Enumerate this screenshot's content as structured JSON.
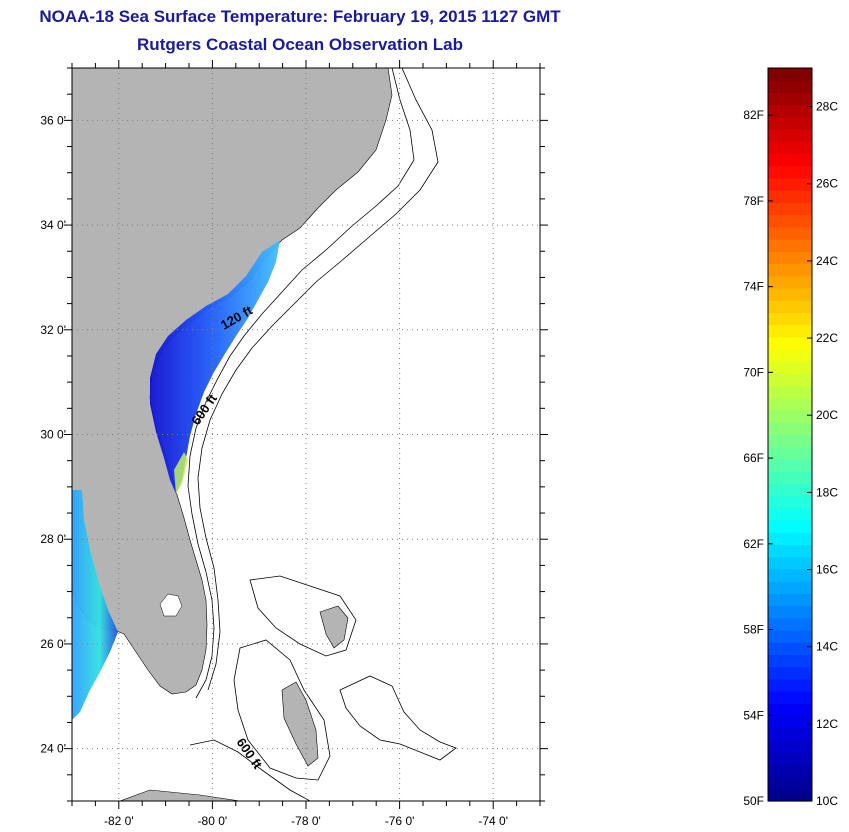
{
  "header": {
    "title": "NOAA-18 Sea Surface Temperature:  February 19, 2015 1127 GMT",
    "subtitle": "Rutgers Coastal Ocean Observation Lab"
  },
  "map": {
    "lat_range": [
      23,
      37
    ],
    "lon_range": [
      -83,
      -73
    ],
    "lat_ticks": [
      {
        "value": 24,
        "label": "24 0'"
      },
      {
        "value": 26,
        "label": "26 0'"
      },
      {
        "value": 28,
        "label": "28 0'"
      },
      {
        "value": 30,
        "label": "30 0'"
      },
      {
        "value": 32,
        "label": "32 0'"
      },
      {
        "value": 34,
        "label": "34 0'"
      },
      {
        "value": 36,
        "label": "36 0'"
      }
    ],
    "lon_ticks": [
      {
        "value": -82,
        "label": "-82 0'"
      },
      {
        "value": -80,
        "label": "-80 0'"
      },
      {
        "value": -78,
        "label": "-78 0'"
      },
      {
        "value": -76,
        "label": "-76 0'"
      },
      {
        "value": -74,
        "label": "-74 0'"
      }
    ],
    "contour_labels": [
      "120 ft",
      "600 ft",
      "600 ft"
    ],
    "colors": {
      "land": "#b4b4b4",
      "ocean": "#ffffff",
      "grid": "#7f7f7f"
    }
  },
  "colorbar": {
    "min_c": 10,
    "max_c": 29,
    "colors_low_to_high": [
      "#00008f",
      "#0000ff",
      "#0080ff",
      "#00ffff",
      "#80ff80",
      "#ffff00",
      "#ff8000",
      "#ff0000",
      "#800000"
    ],
    "fahrenheit_labels": [
      "50F",
      "54F",
      "58F",
      "62F",
      "66F",
      "70F",
      "74F",
      "78F",
      "82F"
    ],
    "celsius_labels": [
      "10C",
      "12C",
      "14C",
      "16C",
      "18C",
      "20C",
      "22C",
      "24C",
      "26C",
      "28C"
    ]
  }
}
